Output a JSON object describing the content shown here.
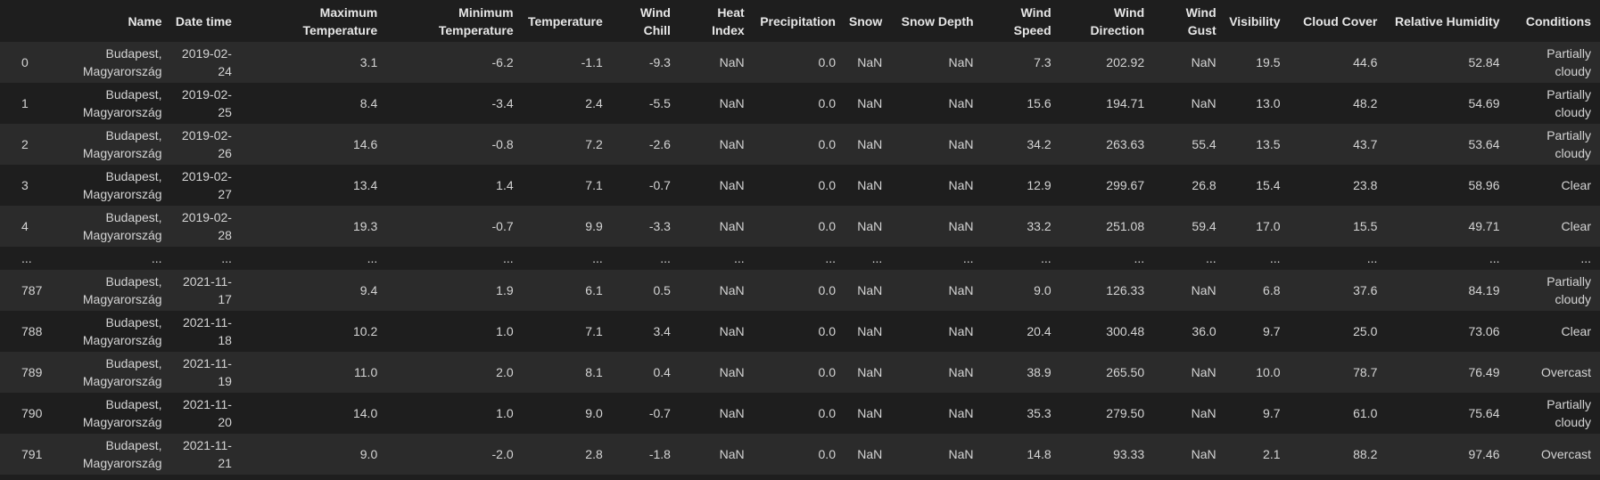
{
  "columns": [
    "",
    "Name",
    "Date time",
    "Maximum Temperature",
    "Minimum Temperature",
    "Temperature",
    "Wind Chill",
    "Heat Index",
    "Precipitation",
    "Snow",
    "Snow Depth",
    "Wind Speed",
    "Wind Direction",
    "Wind Gust",
    "Visibility",
    "Cloud Cover",
    "Relative Humidity",
    "Conditions"
  ],
  "rows": [
    [
      "0",
      "Budapest, Magyarország",
      "2019-02-24",
      "3.1",
      "-6.2",
      "-1.1",
      "-9.3",
      "NaN",
      "0.0",
      "NaN",
      "NaN",
      "7.3",
      "202.92",
      "NaN",
      "19.5",
      "44.6",
      "52.84",
      "Partially cloudy"
    ],
    [
      "1",
      "Budapest, Magyarország",
      "2019-02-25",
      "8.4",
      "-3.4",
      "2.4",
      "-5.5",
      "NaN",
      "0.0",
      "NaN",
      "NaN",
      "15.6",
      "194.71",
      "NaN",
      "13.0",
      "48.2",
      "54.69",
      "Partially cloudy"
    ],
    [
      "2",
      "Budapest, Magyarország",
      "2019-02-26",
      "14.6",
      "-0.8",
      "7.2",
      "-2.6",
      "NaN",
      "0.0",
      "NaN",
      "NaN",
      "34.2",
      "263.63",
      "55.4",
      "13.5",
      "43.7",
      "53.64",
      "Partially cloudy"
    ],
    [
      "3",
      "Budapest, Magyarország",
      "2019-02-27",
      "13.4",
      "1.4",
      "7.1",
      "-0.7",
      "NaN",
      "0.0",
      "NaN",
      "NaN",
      "12.9",
      "299.67",
      "26.8",
      "15.4",
      "23.8",
      "58.96",
      "Clear"
    ],
    [
      "4",
      "Budapest, Magyarország",
      "2019-02-28",
      "19.3",
      "-0.7",
      "9.9",
      "-3.3",
      "NaN",
      "0.0",
      "NaN",
      "NaN",
      "33.2",
      "251.08",
      "59.4",
      "17.0",
      "15.5",
      "49.71",
      "Clear"
    ],
    [
      "...",
      "...",
      "...",
      "...",
      "...",
      "...",
      "...",
      "...",
      "...",
      "...",
      "...",
      "...",
      "...",
      "...",
      "...",
      "...",
      "...",
      "..."
    ],
    [
      "787",
      "Budapest, Magyarország",
      "2021-11-17",
      "9.4",
      "1.9",
      "6.1",
      "0.5",
      "NaN",
      "0.0",
      "NaN",
      "NaN",
      "9.0",
      "126.33",
      "NaN",
      "6.8",
      "37.6",
      "84.19",
      "Partially cloudy"
    ],
    [
      "788",
      "Budapest, Magyarország",
      "2021-11-18",
      "10.2",
      "1.0",
      "7.1",
      "3.4",
      "NaN",
      "0.0",
      "NaN",
      "NaN",
      "20.4",
      "300.48",
      "36.0",
      "9.7",
      "25.0",
      "73.06",
      "Clear"
    ],
    [
      "789",
      "Budapest, Magyarország",
      "2021-11-19",
      "11.0",
      "2.0",
      "8.1",
      "0.4",
      "NaN",
      "0.0",
      "NaN",
      "NaN",
      "38.9",
      "265.50",
      "NaN",
      "10.0",
      "78.7",
      "76.49",
      "Overcast"
    ],
    [
      "790",
      "Budapest, Magyarország",
      "2021-11-20",
      "14.0",
      "1.0",
      "9.0",
      "-0.7",
      "NaN",
      "0.0",
      "NaN",
      "NaN",
      "35.3",
      "279.50",
      "NaN",
      "9.7",
      "61.0",
      "75.64",
      "Partially cloudy"
    ],
    [
      "791",
      "Budapest, Magyarország",
      "2021-11-21",
      "9.0",
      "-2.0",
      "2.8",
      "-1.8",
      "NaN",
      "0.0",
      "NaN",
      "NaN",
      "14.8",
      "93.33",
      "NaN",
      "2.1",
      "88.2",
      "97.46",
      "Overcast"
    ]
  ]
}
